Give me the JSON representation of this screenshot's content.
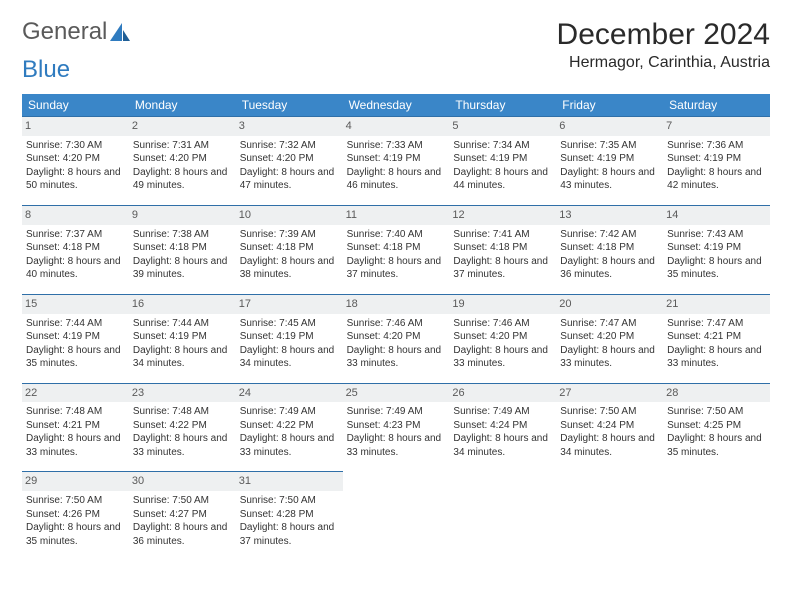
{
  "logo": {
    "text_general": "General",
    "text_blue": "Blue"
  },
  "header": {
    "month_title": "December 2024",
    "location": "Hermagor, Carinthia, Austria"
  },
  "calendar": {
    "header_bg": "#3a86c8",
    "header_fg": "#ffffff",
    "rule_color": "#2f6fa8",
    "daynum_bg": "#eef0f1",
    "day_names": [
      "Sunday",
      "Monday",
      "Tuesday",
      "Wednesday",
      "Thursday",
      "Friday",
      "Saturday"
    ],
    "weeks": [
      [
        {
          "n": "1",
          "sunrise": "7:30 AM",
          "sunset": "4:20 PM",
          "daylight": "8 hours and 50 minutes."
        },
        {
          "n": "2",
          "sunrise": "7:31 AM",
          "sunset": "4:20 PM",
          "daylight": "8 hours and 49 minutes."
        },
        {
          "n": "3",
          "sunrise": "7:32 AM",
          "sunset": "4:20 PM",
          "daylight": "8 hours and 47 minutes."
        },
        {
          "n": "4",
          "sunrise": "7:33 AM",
          "sunset": "4:19 PM",
          "daylight": "8 hours and 46 minutes."
        },
        {
          "n": "5",
          "sunrise": "7:34 AM",
          "sunset": "4:19 PM",
          "daylight": "8 hours and 44 minutes."
        },
        {
          "n": "6",
          "sunrise": "7:35 AM",
          "sunset": "4:19 PM",
          "daylight": "8 hours and 43 minutes."
        },
        {
          "n": "7",
          "sunrise": "7:36 AM",
          "sunset": "4:19 PM",
          "daylight": "8 hours and 42 minutes."
        }
      ],
      [
        {
          "n": "8",
          "sunrise": "7:37 AM",
          "sunset": "4:18 PM",
          "daylight": "8 hours and 40 minutes."
        },
        {
          "n": "9",
          "sunrise": "7:38 AM",
          "sunset": "4:18 PM",
          "daylight": "8 hours and 39 minutes."
        },
        {
          "n": "10",
          "sunrise": "7:39 AM",
          "sunset": "4:18 PM",
          "daylight": "8 hours and 38 minutes."
        },
        {
          "n": "11",
          "sunrise": "7:40 AM",
          "sunset": "4:18 PM",
          "daylight": "8 hours and 37 minutes."
        },
        {
          "n": "12",
          "sunrise": "7:41 AM",
          "sunset": "4:18 PM",
          "daylight": "8 hours and 37 minutes."
        },
        {
          "n": "13",
          "sunrise": "7:42 AM",
          "sunset": "4:18 PM",
          "daylight": "8 hours and 36 minutes."
        },
        {
          "n": "14",
          "sunrise": "7:43 AM",
          "sunset": "4:19 PM",
          "daylight": "8 hours and 35 minutes."
        }
      ],
      [
        {
          "n": "15",
          "sunrise": "7:44 AM",
          "sunset": "4:19 PM",
          "daylight": "8 hours and 35 minutes."
        },
        {
          "n": "16",
          "sunrise": "7:44 AM",
          "sunset": "4:19 PM",
          "daylight": "8 hours and 34 minutes."
        },
        {
          "n": "17",
          "sunrise": "7:45 AM",
          "sunset": "4:19 PM",
          "daylight": "8 hours and 34 minutes."
        },
        {
          "n": "18",
          "sunrise": "7:46 AM",
          "sunset": "4:20 PM",
          "daylight": "8 hours and 33 minutes."
        },
        {
          "n": "19",
          "sunrise": "7:46 AM",
          "sunset": "4:20 PM",
          "daylight": "8 hours and 33 minutes."
        },
        {
          "n": "20",
          "sunrise": "7:47 AM",
          "sunset": "4:20 PM",
          "daylight": "8 hours and 33 minutes."
        },
        {
          "n": "21",
          "sunrise": "7:47 AM",
          "sunset": "4:21 PM",
          "daylight": "8 hours and 33 minutes."
        }
      ],
      [
        {
          "n": "22",
          "sunrise": "7:48 AM",
          "sunset": "4:21 PM",
          "daylight": "8 hours and 33 minutes."
        },
        {
          "n": "23",
          "sunrise": "7:48 AM",
          "sunset": "4:22 PM",
          "daylight": "8 hours and 33 minutes."
        },
        {
          "n": "24",
          "sunrise": "7:49 AM",
          "sunset": "4:22 PM",
          "daylight": "8 hours and 33 minutes."
        },
        {
          "n": "25",
          "sunrise": "7:49 AM",
          "sunset": "4:23 PM",
          "daylight": "8 hours and 33 minutes."
        },
        {
          "n": "26",
          "sunrise": "7:49 AM",
          "sunset": "4:24 PM",
          "daylight": "8 hours and 34 minutes."
        },
        {
          "n": "27",
          "sunrise": "7:50 AM",
          "sunset": "4:24 PM",
          "daylight": "8 hours and 34 minutes."
        },
        {
          "n": "28",
          "sunrise": "7:50 AM",
          "sunset": "4:25 PM",
          "daylight": "8 hours and 35 minutes."
        }
      ],
      [
        {
          "n": "29",
          "sunrise": "7:50 AM",
          "sunset": "4:26 PM",
          "daylight": "8 hours and 35 minutes."
        },
        {
          "n": "30",
          "sunrise": "7:50 AM",
          "sunset": "4:27 PM",
          "daylight": "8 hours and 36 minutes."
        },
        {
          "n": "31",
          "sunrise": "7:50 AM",
          "sunset": "4:28 PM",
          "daylight": "8 hours and 37 minutes."
        },
        null,
        null,
        null,
        null
      ]
    ],
    "labels": {
      "sunrise": "Sunrise: ",
      "sunset": "Sunset: ",
      "daylight": "Daylight: "
    }
  }
}
